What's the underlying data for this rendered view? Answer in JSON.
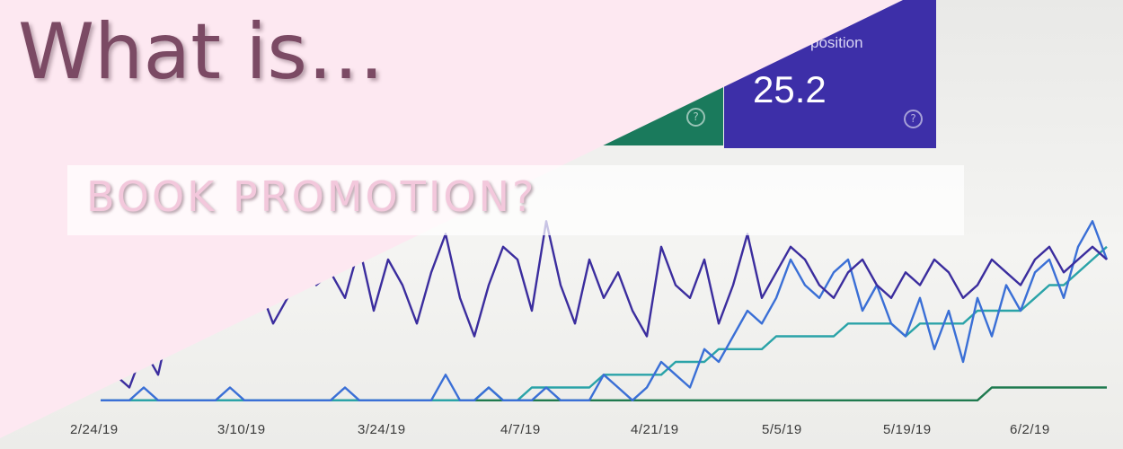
{
  "headline": "What is…",
  "subtitle": "BOOK PROMOTION?",
  "metric_card": {
    "label": "position",
    "value": "25.2",
    "help_icon": "help-circle-icon"
  },
  "colors": {
    "overlay_pink": "#fde8f1",
    "headline": "#7b4a64",
    "subtitle": "#f3c8dc",
    "card_green": "#1a7a5c",
    "card_purple": "#3d2fa8"
  },
  "chart_data": {
    "type": "line",
    "x_labels": [
      "2/24/19",
      "3/10/19",
      "3/24/19",
      "4/7/19",
      "4/21/19",
      "5/5/19",
      "5/19/19",
      "6/2/19"
    ],
    "series": [
      {
        "color": "#3b2d9e",
        "values": [
          2,
          3,
          2,
          5,
          3,
          8,
          6,
          7,
          14,
          11,
          8,
          10,
          7,
          9,
          12,
          10,
          11,
          9,
          13,
          8,
          12,
          10,
          7,
          11,
          14,
          9,
          6,
          10,
          13,
          12,
          8,
          15,
          10,
          7,
          12,
          9,
          11,
          8,
          6,
          13,
          10,
          9,
          12,
          7,
          10,
          14,
          9,
          11,
          13,
          12,
          10,
          9,
          11,
          12,
          10,
          9,
          11,
          10,
          12,
          11,
          9,
          10,
          12,
          11,
          10,
          12,
          13,
          11,
          12,
          13,
          12
        ]
      },
      {
        "color": "#3a6fd6",
        "values": [
          1,
          1,
          1,
          2,
          1,
          1,
          1,
          1,
          1,
          2,
          1,
          1,
          1,
          1,
          1,
          1,
          1,
          2,
          1,
          1,
          1,
          1,
          1,
          1,
          3,
          1,
          1,
          2,
          1,
          1,
          1,
          2,
          1,
          1,
          1,
          3,
          2,
          1,
          2,
          4,
          3,
          2,
          5,
          4,
          6,
          8,
          7,
          9,
          12,
          10,
          9,
          11,
          12,
          8,
          10,
          7,
          6,
          9,
          5,
          8,
          4,
          9,
          6,
          10,
          8,
          11,
          12,
          9,
          13,
          15,
          12
        ]
      },
      {
        "color": "#2aa3a8",
        "values": [
          1,
          1,
          1,
          1,
          1,
          1,
          1,
          1,
          1,
          1,
          1,
          1,
          1,
          1,
          1,
          1,
          1,
          1,
          1,
          1,
          1,
          1,
          1,
          1,
          1,
          1,
          1,
          2,
          1,
          1,
          2,
          2,
          2,
          2,
          2,
          3,
          3,
          3,
          3,
          3,
          4,
          4,
          4,
          5,
          5,
          5,
          5,
          6,
          6,
          6,
          6,
          6,
          7,
          7,
          7,
          7,
          6,
          7,
          7,
          7,
          7,
          8,
          8,
          8,
          8,
          9,
          10,
          10,
          11,
          12,
          13
        ]
      },
      {
        "color": "#1f7a4f",
        "values": [
          1,
          1,
          1,
          1,
          1,
          1,
          1,
          1,
          1,
          1,
          1,
          1,
          1,
          1,
          1,
          1,
          1,
          1,
          1,
          1,
          1,
          1,
          1,
          1,
          1,
          1,
          1,
          1,
          1,
          1,
          1,
          1,
          1,
          1,
          1,
          1,
          1,
          1,
          1,
          1,
          1,
          1,
          1,
          1,
          1,
          1,
          1,
          1,
          1,
          1,
          1,
          1,
          1,
          1,
          1,
          1,
          1,
          1,
          1,
          1,
          1,
          1,
          2,
          2,
          2,
          2,
          2,
          2,
          2,
          2,
          2
        ]
      }
    ],
    "ylim": [
      0,
      16
    ],
    "grid": false,
    "legend": "none"
  }
}
